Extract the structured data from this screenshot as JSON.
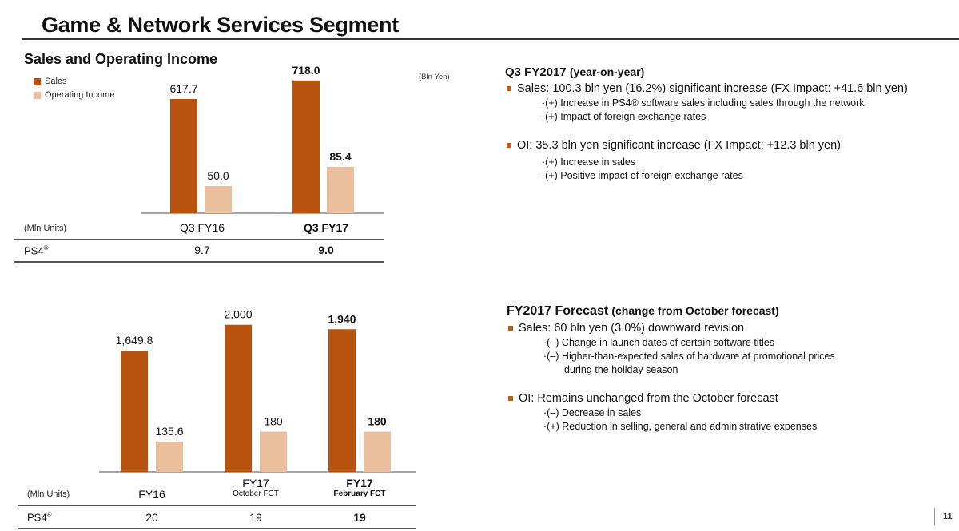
{
  "page": {
    "title": "Game & Network Services Segment",
    "section_title": "Sales and Operating Income",
    "unit_bln_yen": "(Bln Yen)",
    "page_number": "11"
  },
  "colors": {
    "sales": "#b85410",
    "oi": "#ebbf9e",
    "bullet": "#c05a14"
  },
  "legend": [
    {
      "label": "Sales"
    },
    {
      "label": "Operating Income"
    }
  ],
  "chart_data": [
    {
      "type": "bar",
      "title": "Sales and Operating Income (Q3)",
      "unit": "Bln Yen",
      "categories": [
        "Q3 FY16",
        "Q3 FY17"
      ],
      "category_bold": [
        false,
        true
      ],
      "series": [
        {
          "name": "Sales",
          "values": [
            617.7,
            718.0
          ],
          "labels": [
            "617.7",
            "718.0"
          ]
        },
        {
          "name": "Operating Income",
          "values": [
            50.0,
            85.4
          ],
          "labels": [
            "50.0",
            "85.4"
          ]
        }
      ],
      "legend_position": "top-left",
      "grid": false
    },
    {
      "type": "bar",
      "title": "Sales and Operating Income (Full Year)",
      "unit": "Bln Yen",
      "categories": [
        "FY16",
        "FY17",
        "FY17"
      ],
      "category_sublabels": [
        "",
        "October FCT",
        "February FCT"
      ],
      "category_bold": [
        false,
        false,
        true
      ],
      "series": [
        {
          "name": "Sales",
          "values": [
            1649.8,
            2000,
            1940
          ],
          "labels": [
            "1,649.8",
            "2,000",
            "1,940"
          ]
        },
        {
          "name": "Operating Income",
          "values": [
            135.6,
            180,
            180
          ],
          "labels": [
            "135.6",
            "180",
            "180"
          ]
        }
      ],
      "grid": false
    }
  ],
  "table_q3": {
    "unit_label": "(Mln Units)",
    "row_label": "PS4",
    "row_label_sup": "®",
    "values": [
      "9.7",
      "9.0"
    ]
  },
  "table_fy": {
    "unit_label": "(Mln Units)",
    "row_label": "PS4",
    "row_label_sup": "®",
    "values": [
      "20",
      "19",
      "19"
    ]
  },
  "q3_commentary": {
    "heading": "Q3 FY2017",
    "heading_sub": "(year-on-year)",
    "bullets": [
      {
        "text": "Sales: 100.3 bln yen (16.2%) significant increase (FX Impact: +41.6 bln yen)",
        "items": [
          "·(+)  Increase in PS4® software sales including sales through the network",
          "·(+)  Impact of foreign exchange rates"
        ]
      },
      {
        "text": "OI: 35.3 bln yen significant increase (FX Impact: +12.3 bln yen)",
        "items": [
          "·(+)  Increase in sales",
          "·(+)  Positive impact of foreign exchange rates"
        ]
      }
    ]
  },
  "fy_commentary": {
    "heading": "FY2017 Forecast",
    "heading_sub": "(change from October forecast)",
    "bullets": [
      {
        "text": "Sales: 60 bln yen (3.0%) downward revision",
        "items": [
          "·(–)  Change in launch dates of certain software titles",
          "·(–)  Higher-than-expected sales of hardware at promotional prices"
        ],
        "continuation": "during the holiday season"
      },
      {
        "text": "OI: Remains unchanged from the October forecast",
        "items": [
          "·(–) Decrease in sales",
          "·(+)  Reduction in selling, general and administrative expenses"
        ]
      }
    ]
  }
}
